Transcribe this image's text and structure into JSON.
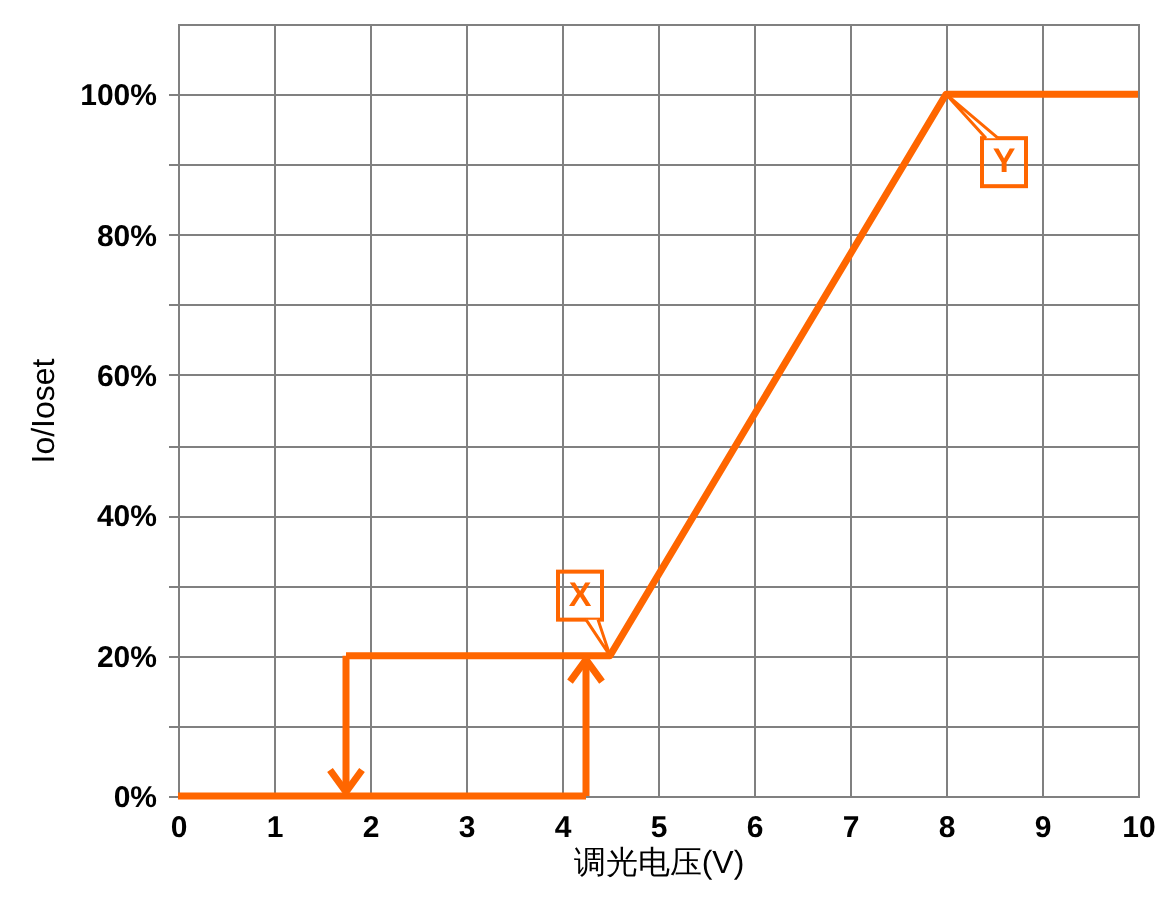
{
  "chart_data": {
    "type": "line",
    "xlabel": "调光电压(V)",
    "ylabel": "Io/Ioset",
    "series": [
      {
        "color": "#ff6600",
        "x": [
          0,
          4.25
        ],
        "values": [
          0,
          0
        ]
      },
      {
        "color": "#ff6600",
        "x": [
          1.75,
          4.5,
          8,
          10
        ],
        "values": [
          20,
          20,
          100,
          100
        ]
      }
    ],
    "xlim": [
      0,
      10
    ],
    "xticks": [
      0,
      1,
      2,
      3,
      4,
      5,
      6,
      7,
      8,
      9,
      10
    ],
    "ylim": [
      0,
      110
    ],
    "yticks": [
      {
        "value": 0,
        "label": "0%"
      },
      {
        "value": 10,
        "label": null
      },
      {
        "value": 20,
        "label": "20%"
      },
      {
        "value": 30,
        "label": null
      },
      {
        "value": 40,
        "label": "40%"
      },
      {
        "value": 50,
        "label": null
      },
      {
        "value": 60,
        "label": "60%"
      },
      {
        "value": 70,
        "label": null
      },
      {
        "value": 80,
        "label": "80%"
      },
      {
        "value": 90,
        "label": null
      },
      {
        "value": 100,
        "label": "100%"
      }
    ],
    "grid": true,
    "marker": "none",
    "line_style": "solid",
    "annotations": [
      {
        "text": "X",
        "x": 4.5,
        "y": 20
      },
      {
        "text": "Y",
        "x": 8,
        "y": 100
      }
    ]
  }
}
